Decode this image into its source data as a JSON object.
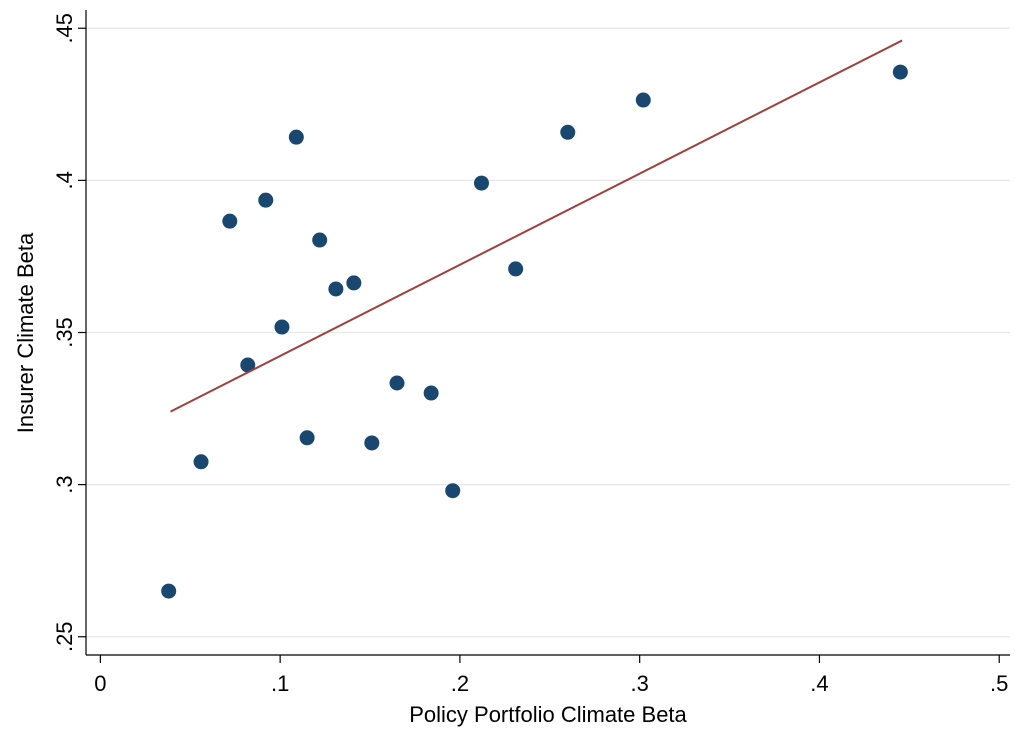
{
  "chart_data": {
    "type": "scatter",
    "x_label": "Policy Portfolio Climate Beta",
    "y_label": "Insurer Climate Beta",
    "xlim": [
      -0.008,
      0.506
    ],
    "ylim": [
      0.244,
      0.456
    ],
    "xticks": [
      0,
      {
        "value": 0.1,
        "label": ".1"
      },
      {
        "value": 0.2,
        "label": ".2"
      },
      {
        "value": 0.3,
        "label": ".3"
      },
      {
        "value": 0.4,
        "label": ".4"
      },
      {
        "value": 0.5,
        "label": ".5"
      }
    ],
    "yticks": [
      {
        "value": 0.25,
        "label": ".25"
      },
      {
        "value": 0.3,
        "label": ".3"
      },
      {
        "value": 0.35,
        "label": ".35"
      },
      {
        "value": 0.4,
        "label": ".4"
      },
      {
        "value": 0.45,
        "label": ".45"
      }
    ],
    "grid": true,
    "points": {
      "color": "#1a476f",
      "x": [
        0.038,
        0.056,
        0.072,
        0.082,
        0.092,
        0.101,
        0.109,
        0.115,
        0.122,
        0.131,
        0.141,
        0.151,
        0.165,
        0.184,
        0.196,
        0.212,
        0.231,
        0.26,
        0.302,
        0.445
      ],
      "values": [
        0.265,
        0.3075,
        0.3866,
        0.3393,
        0.3935,
        0.3518,
        0.4142,
        0.3154,
        0.3804,
        0.3643,
        0.3663,
        0.3137,
        0.3334,
        0.3301,
        0.298,
        0.3991,
        0.3709,
        0.4158,
        0.4264,
        0.4356
      ]
    },
    "fit_line": {
      "color": "#a0403c",
      "x": [
        0.039,
        0.446
      ],
      "values": [
        0.324,
        0.446
      ]
    }
  }
}
